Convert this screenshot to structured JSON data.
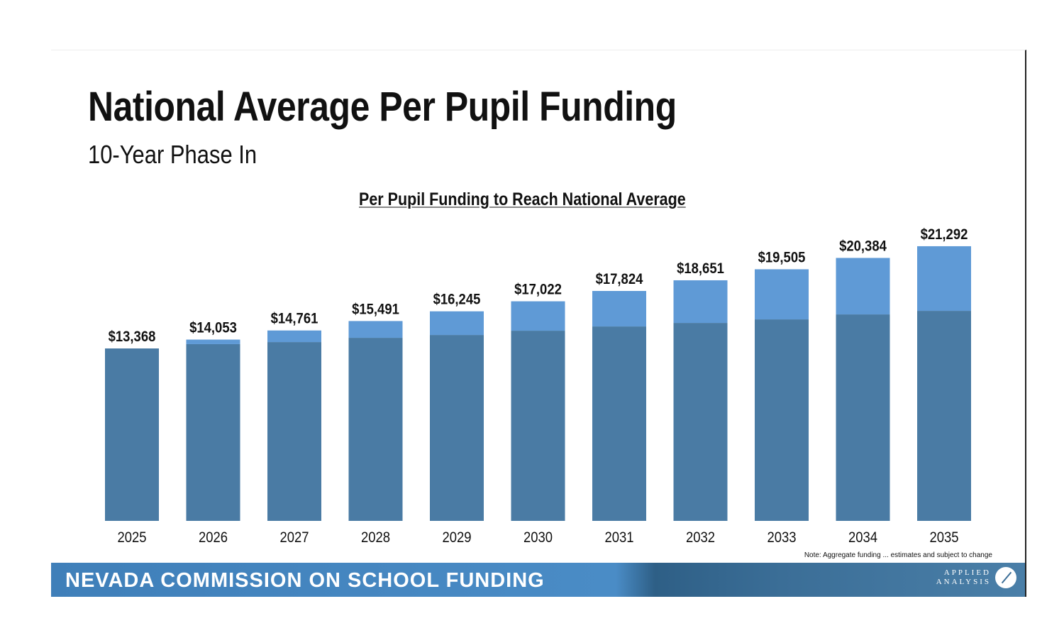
{
  "slide": {
    "title": "National Average Per Pupil Funding",
    "subtitle": "10-Year Phase In",
    "note": "Note: Aggregate funding ... estimates and subject to change",
    "footer": "NEVADA COMMISSION ON SCHOOL FUNDING",
    "logo_line1": "APPLIED",
    "logo_line2": "ANALYSIS"
  },
  "chart_data": {
    "type": "bar",
    "stacked": true,
    "title": "Per Pupil Funding to Reach National Average",
    "xlabel": "",
    "ylabel": "",
    "categories": [
      "2025",
      "2026",
      "2027",
      "2028",
      "2029",
      "2030",
      "2031",
      "2032",
      "2033",
      "2034",
      "2035"
    ],
    "series": [
      {
        "values": [
          13368,
          13700,
          13860,
          14190,
          14410,
          14740,
          15070,
          15345,
          15620,
          16005,
          16280
        ],
        "color": "#4a7ba4"
      },
      {
        "values": [
          0,
          353,
          901,
          1301,
          1835,
          2282,
          2754,
          3306,
          3885,
          4379,
          5012
        ],
        "color": "#5f9ad6"
      }
    ],
    "totals": [
      13368,
      14053,
      14761,
      15491,
      16245,
      17022,
      17824,
      18651,
      19505,
      20384,
      21292
    ],
    "data_labels": [
      "$13,368",
      "$14,053",
      "$14,761",
      "$15,491",
      "$16,245",
      "$17,022",
      "$17,824",
      "$18,651",
      "$19,505",
      "$20,384",
      "$21,292"
    ],
    "ylim": [
      0,
      22000
    ],
    "grid": false,
    "legend": "none"
  }
}
